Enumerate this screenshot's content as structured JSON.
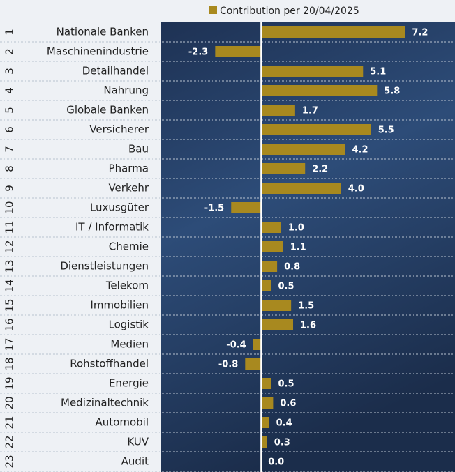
{
  "chart_data": {
    "type": "bar",
    "orientation": "horizontal",
    "ranks": [
      "1",
      "2",
      "3",
      "4",
      "5",
      "6",
      "7",
      "8",
      "9",
      "10",
      "11",
      "12",
      "13",
      "14",
      "15",
      "16",
      "17",
      "18",
      "19",
      "20",
      "21",
      "22",
      "23"
    ],
    "categories": [
      "Nationale Banken",
      "Maschinenindustrie",
      "Detailhandel",
      "Nahrung",
      "Globale Banken",
      "Versicherer",
      "Bau",
      "Pharma",
      "Verkehr",
      "Luxusgüter",
      "IT / Informatik",
      "Chemie",
      "Dienstleistungen",
      "Telekom",
      "Immobilien",
      "Logistik",
      "Medien",
      "Rohstoffhandel",
      "Energie",
      "Medizinaltechnik",
      "Automobil",
      "KUV",
      "Audit"
    ],
    "series": [
      {
        "name": "Contribution per 20/04/2025",
        "color": "#a8891f",
        "values": [
          7.2,
          -2.3,
          5.1,
          5.8,
          1.7,
          5.5,
          4.2,
          2.2,
          4.0,
          -1.5,
          1.0,
          1.1,
          0.8,
          0.5,
          1.5,
          1.6,
          -0.4,
          -0.8,
          0.5,
          0.6,
          0.4,
          0.3,
          0.0
        ],
        "value_labels": [
          "7.2",
          "-2.3",
          "5.1",
          "5.8",
          "1.7",
          "5.5",
          "4.2",
          "2.2",
          "4.0",
          "-1.5",
          "1.0",
          "1.1",
          "0.8",
          "0.5",
          "1.5",
          "1.6",
          "-0.4",
          "-0.8",
          "0.5",
          "0.6",
          "0.4",
          "0.3",
          "0.0"
        ]
      }
    ],
    "xlim": [
      -5,
      9.7
    ]
  }
}
